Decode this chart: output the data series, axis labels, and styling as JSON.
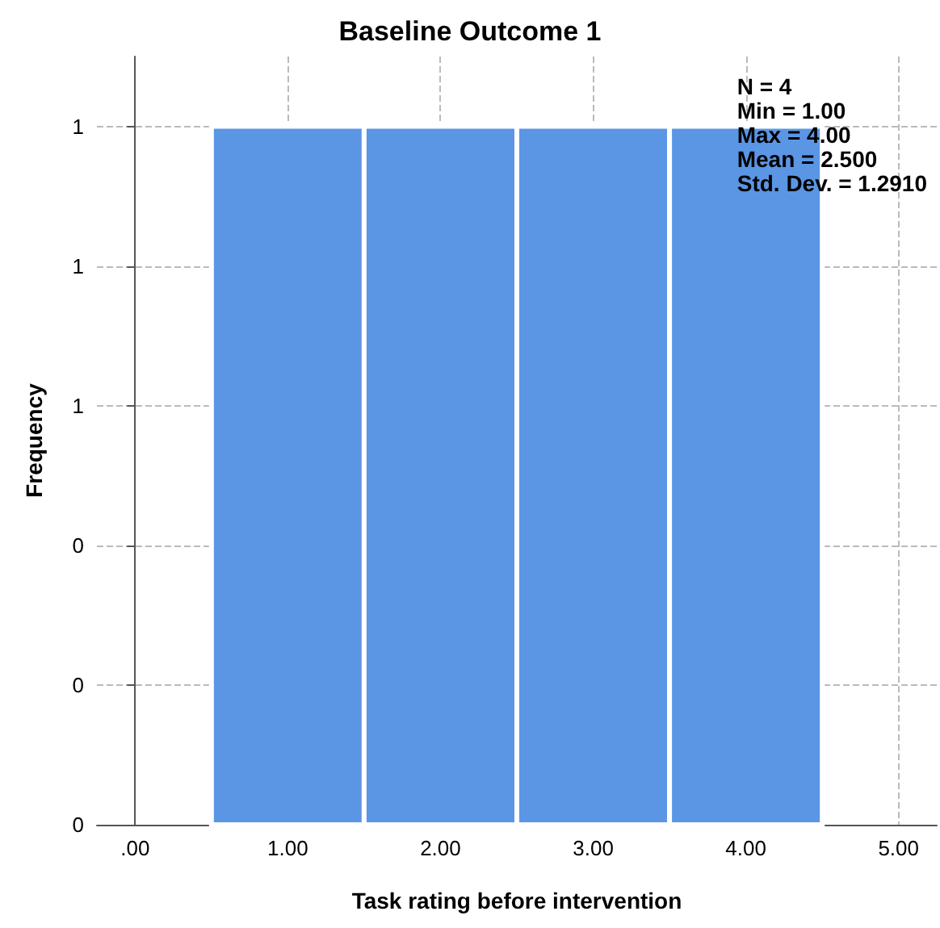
{
  "chart_data": {
    "type": "histogram",
    "title": "Baseline Outcome 1",
    "xlabel": "Task rating before intervention",
    "ylabel": "Frequency",
    "bins": [
      0.5,
      1.5,
      2.5,
      3.5,
      4.5
    ],
    "values": [
      1,
      1,
      1,
      1
    ],
    "color": "#5b96e5",
    "xlim": [
      -0.25,
      5.25
    ],
    "xticks": [
      {
        "value": 0,
        "label": ".00"
      },
      {
        "value": 1,
        "label": "1.00"
      },
      {
        "value": 2,
        "label": "2.00"
      },
      {
        "value": 3,
        "label": "3.00"
      },
      {
        "value": 4,
        "label": "4.00"
      },
      {
        "value": 5,
        "label": "5.00"
      }
    ],
    "ylim": [
      0,
      1.1
    ],
    "yticks": [
      0,
      {
        "value": 0.2,
        "label": "0"
      },
      {
        "value": 0.4,
        "label": "0"
      },
      {
        "value": 0.6,
        "label": "1"
      },
      {
        "value": 0.8,
        "label": "1"
      },
      1
    ],
    "annotations": [
      "N = 4",
      "Min = 1.00",
      "Max = 4.00",
      "Mean = 2.500",
      "Std. Dev. = 1.2910"
    ],
    "grid": true
  }
}
